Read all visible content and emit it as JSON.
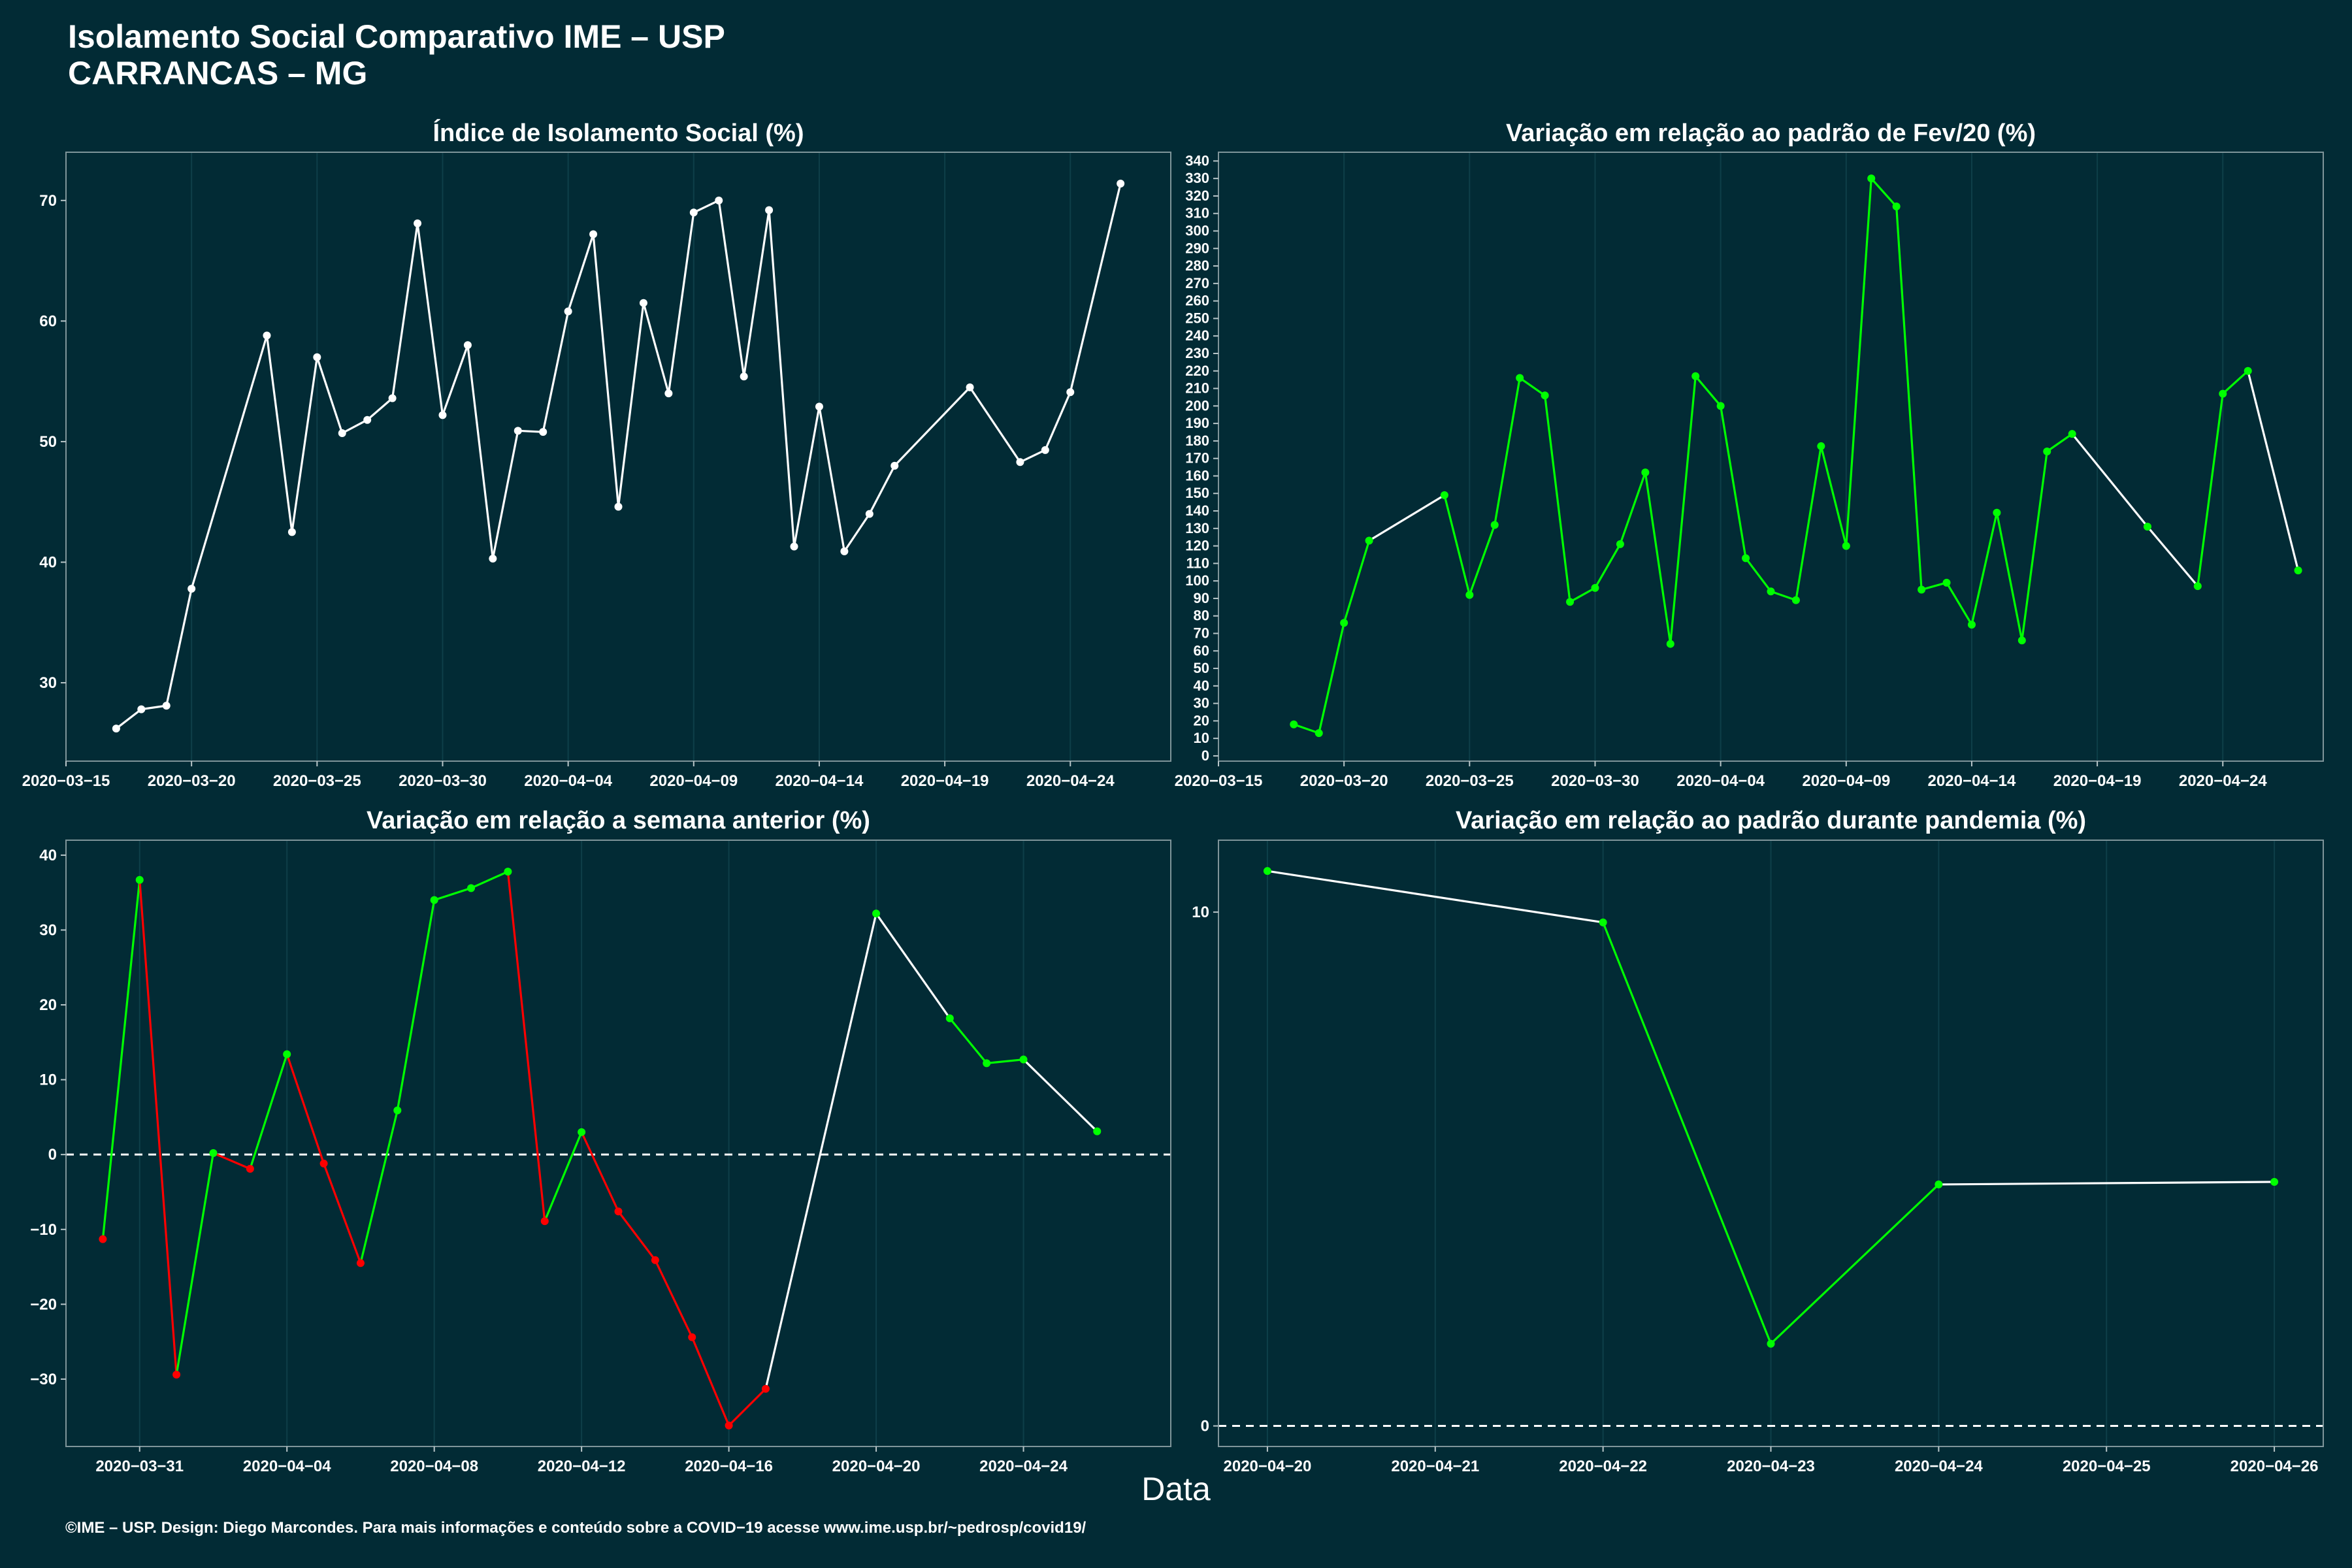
{
  "header": {
    "title_line1": "Isolamento Social Comparativo IME – USP",
    "title_line2": "CARRANCAS – MG"
  },
  "x_axis_title": "Data",
  "footer": "©IME – USP. Design: Diego Marcondes. Para mais informações e conteúdo sobre a COVID−19 acesse www.ime.usp.br/~pedrosp/covid19/",
  "colors": {
    "background": "#022b35",
    "white": "#ffffff",
    "green": "#00ff00",
    "red": "#ff0000",
    "grid": "#0e3f49"
  },
  "chart_data": [
    {
      "type": "line",
      "title": "Índice de Isolamento Social (%)",
      "xlim": [
        "2020-03-15",
        "2020-04-28"
      ],
      "ylim": [
        23.5,
        74
      ],
      "xticks": [
        "2020-03-15",
        "2020-03-20",
        "2020-03-25",
        "2020-03-30",
        "2020-04-04",
        "2020-04-09",
        "2020-04-14",
        "2020-04-19",
        "2020-04-24"
      ],
      "yticks": [
        30,
        40,
        50,
        60,
        70
      ],
      "points": [
        {
          "x": "2020-03-17",
          "y": 26.2,
          "c": "white"
        },
        {
          "x": "2020-03-18",
          "y": 27.8,
          "c": "white"
        },
        {
          "x": "2020-03-19",
          "y": 28.1,
          "c": "white"
        },
        {
          "x": "2020-03-20",
          "y": 37.8,
          "c": "white"
        },
        {
          "x": "2020-03-23",
          "y": 58.8,
          "c": "white"
        },
        {
          "x": "2020-03-24",
          "y": 42.5,
          "c": "white"
        },
        {
          "x": "2020-03-25",
          "y": 57.0,
          "c": "white"
        },
        {
          "x": "2020-03-26",
          "y": 50.7,
          "c": "white"
        },
        {
          "x": "2020-03-27",
          "y": 51.8,
          "c": "white"
        },
        {
          "x": "2020-03-28",
          "y": 53.6,
          "c": "white"
        },
        {
          "x": "2020-03-29",
          "y": 68.1,
          "c": "white"
        },
        {
          "x": "2020-03-30",
          "y": 52.2,
          "c": "white"
        },
        {
          "x": "2020-03-31",
          "y": 58.0,
          "c": "white"
        },
        {
          "x": "2020-04-01",
          "y": 40.3,
          "c": "white"
        },
        {
          "x": "2020-04-02",
          "y": 50.9,
          "c": "white"
        },
        {
          "x": "2020-04-03",
          "y": 50.8,
          "c": "white"
        },
        {
          "x": "2020-04-04",
          "y": 60.8,
          "c": "white"
        },
        {
          "x": "2020-04-05",
          "y": 67.2,
          "c": "white"
        },
        {
          "x": "2020-04-06",
          "y": 44.6,
          "c": "white"
        },
        {
          "x": "2020-04-07",
          "y": 61.5,
          "c": "white"
        },
        {
          "x": "2020-04-08",
          "y": 54.0,
          "c": "white"
        },
        {
          "x": "2020-04-09",
          "y": 69.0,
          "c": "white"
        },
        {
          "x": "2020-04-10",
          "y": 70.0,
          "c": "white"
        },
        {
          "x": "2020-04-11",
          "y": 55.4,
          "c": "white"
        },
        {
          "x": "2020-04-12",
          "y": 69.2,
          "c": "white"
        },
        {
          "x": "2020-04-13",
          "y": 41.3,
          "c": "white"
        },
        {
          "x": "2020-04-14",
          "y": 52.9,
          "c": "white"
        },
        {
          "x": "2020-04-15",
          "y": 40.9,
          "c": "white"
        },
        {
          "x": "2020-04-16",
          "y": 44.0,
          "c": "white"
        },
        {
          "x": "2020-04-17",
          "y": 48.0,
          "c": "white"
        },
        {
          "x": "2020-04-20",
          "y": 54.5,
          "c": "white"
        },
        {
          "x": "2020-04-22",
          "y": 48.3,
          "c": "white"
        },
        {
          "x": "2020-04-23",
          "y": 49.3,
          "c": "white"
        },
        {
          "x": "2020-04-24",
          "y": 54.1,
          "c": "white"
        },
        {
          "x": "2020-04-26",
          "y": 71.4,
          "c": "white"
        }
      ]
    },
    {
      "type": "line",
      "title": "Variação em relação ao padrão de Fev/20 (%)",
      "xlim": [
        "2020-03-15",
        "2020-04-28"
      ],
      "ylim": [
        -3,
        345
      ],
      "xticks": [
        "2020-03-15",
        "2020-03-20",
        "2020-03-25",
        "2020-03-30",
        "2020-04-04",
        "2020-04-09",
        "2020-04-14",
        "2020-04-19",
        "2020-04-24"
      ],
      "yticks": [
        0,
        10,
        20,
        30,
        40,
        50,
        60,
        70,
        80,
        90,
        100,
        110,
        120,
        130,
        140,
        150,
        160,
        170,
        180,
        190,
        200,
        210,
        220,
        230,
        240,
        250,
        260,
        270,
        280,
        290,
        300,
        310,
        320,
        330,
        340
      ],
      "points": [
        {
          "x": "2020-03-18",
          "y": 18,
          "c": "green"
        },
        {
          "x": "2020-03-19",
          "y": 13,
          "c": "green"
        },
        {
          "x": "2020-03-20",
          "y": 76,
          "c": "green"
        },
        {
          "x": "2020-03-21",
          "y": 123,
          "c": "green"
        },
        {
          "x": "2020-03-24",
          "y": 149,
          "c": "green"
        },
        {
          "x": "2020-03-25",
          "y": 92,
          "c": "green"
        },
        {
          "x": "2020-03-26",
          "y": 132,
          "c": "green"
        },
        {
          "x": "2020-03-27",
          "y": 216,
          "c": "green"
        },
        {
          "x": "2020-03-28",
          "y": 206,
          "c": "green"
        },
        {
          "x": "2020-03-29",
          "y": 88,
          "c": "green"
        },
        {
          "x": "2020-03-30",
          "y": 96,
          "c": "green"
        },
        {
          "x": "2020-03-31",
          "y": 121,
          "c": "green"
        },
        {
          "x": "2020-04-01",
          "y": 162,
          "c": "green"
        },
        {
          "x": "2020-04-02",
          "y": 64,
          "c": "green"
        },
        {
          "x": "2020-04-03",
          "y": 217,
          "c": "green"
        },
        {
          "x": "2020-04-04",
          "y": 200,
          "c": "green"
        },
        {
          "x": "2020-04-05",
          "y": 113,
          "c": "green"
        },
        {
          "x": "2020-04-06",
          "y": 94,
          "c": "green"
        },
        {
          "x": "2020-04-07",
          "y": 89,
          "c": "green"
        },
        {
          "x": "2020-04-08",
          "y": 177,
          "c": "green"
        },
        {
          "x": "2020-04-09",
          "y": 120,
          "c": "green"
        },
        {
          "x": "2020-04-10",
          "y": 330,
          "c": "green"
        },
        {
          "x": "2020-04-11",
          "y": 314,
          "c": "green"
        },
        {
          "x": "2020-04-12",
          "y": 95,
          "c": "green"
        },
        {
          "x": "2020-04-13",
          "y": 99,
          "c": "green"
        },
        {
          "x": "2020-04-14",
          "y": 75,
          "c": "green"
        },
        {
          "x": "2020-04-15",
          "y": 139,
          "c": "green"
        },
        {
          "x": "2020-04-16",
          "y": 66,
          "c": "green"
        },
        {
          "x": "2020-04-17",
          "y": 174,
          "c": "green"
        },
        {
          "x": "2020-04-18",
          "y": 184,
          "c": "green"
        },
        {
          "x": "2020-04-21",
          "y": 131,
          "c": "green"
        },
        {
          "x": "2020-04-23",
          "y": 97,
          "c": "green"
        },
        {
          "x": "2020-04-24",
          "y": 207,
          "c": "green"
        },
        {
          "x": "2020-04-25",
          "y": 220,
          "c": "green"
        },
        {
          "x": "2020-04-27",
          "y": 106,
          "c": "green"
        }
      ]
    },
    {
      "type": "line",
      "title": "Variação em relação a semana anterior (%)",
      "xlim": [
        "2020-03-29",
        "2020-04-28"
      ],
      "ylim": [
        -39,
        42
      ],
      "xticks": [
        "2020-03-31",
        "2020-04-04",
        "2020-04-08",
        "2020-04-12",
        "2020-04-16",
        "2020-04-20",
        "2020-04-24"
      ],
      "yticks": [
        -30,
        -20,
        -10,
        0,
        10,
        20,
        30,
        40
      ],
      "zero_line": true,
      "points": [
        {
          "x": "2020-03-30",
          "y": -11.3,
          "c": "red"
        },
        {
          "x": "2020-03-31",
          "y": 36.7,
          "c": "green"
        },
        {
          "x": "2020-04-01",
          "y": -29.4,
          "c": "red"
        },
        {
          "x": "2020-04-02",
          "y": 0.2,
          "c": "green"
        },
        {
          "x": "2020-04-03",
          "y": -1.9,
          "c": "red"
        },
        {
          "x": "2020-04-04",
          "y": 13.4,
          "c": "green"
        },
        {
          "x": "2020-04-05",
          "y": -1.2,
          "c": "red"
        },
        {
          "x": "2020-04-06",
          "y": -14.5,
          "c": "red"
        },
        {
          "x": "2020-04-07",
          "y": 5.9,
          "c": "green"
        },
        {
          "x": "2020-04-08",
          "y": 34.0,
          "c": "green"
        },
        {
          "x": "2020-04-09",
          "y": 35.6,
          "c": "green"
        },
        {
          "x": "2020-04-10",
          "y": 37.8,
          "c": "green"
        },
        {
          "x": "2020-04-11",
          "y": -8.9,
          "c": "red"
        },
        {
          "x": "2020-04-12",
          "y": 3.0,
          "c": "green"
        },
        {
          "x": "2020-04-13",
          "y": -7.6,
          "c": "red"
        },
        {
          "x": "2020-04-14",
          "y": -14.1,
          "c": "red"
        },
        {
          "x": "2020-04-15",
          "y": -24.4,
          "c": "red"
        },
        {
          "x": "2020-04-16",
          "y": -36.2,
          "c": "red"
        },
        {
          "x": "2020-04-17",
          "y": -31.3,
          "c": "red"
        },
        {
          "x": "2020-04-20",
          "y": 32.2,
          "c": "green"
        },
        {
          "x": "2020-04-22",
          "y": 18.2,
          "c": "green"
        },
        {
          "x": "2020-04-23",
          "y": 12.2,
          "c": "green"
        },
        {
          "x": "2020-04-24",
          "y": 12.7,
          "c": "green"
        },
        {
          "x": "2020-04-26",
          "y": 3.1,
          "c": "green"
        }
      ]
    },
    {
      "type": "line",
      "title": "Variação em relação ao padrão durante pandemia (%)",
      "xlim": [
        "2020-04-19 17:00",
        "2020-04-26 07:00"
      ],
      "ylim": [
        -0.4,
        11.4
      ],
      "xticks": [
        "2020-04-20",
        "2020-04-21",
        "2020-04-22",
        "2020-04-23",
        "2020-04-24",
        "2020-04-25",
        "2020-04-26"
      ],
      "yticks": [
        0,
        10
      ],
      "zero_line": true,
      "points": [
        {
          "x": "2020-04-20",
          "y": 10.8,
          "c": "green"
        },
        {
          "x": "2020-04-22",
          "y": 9.8,
          "c": "green"
        },
        {
          "x": "2020-04-23",
          "y": 1.6,
          "c": "green"
        },
        {
          "x": "2020-04-24",
          "y": 4.7,
          "c": "green"
        },
        {
          "x": "2020-04-26",
          "y": 4.75,
          "c": "green"
        }
      ]
    }
  ]
}
